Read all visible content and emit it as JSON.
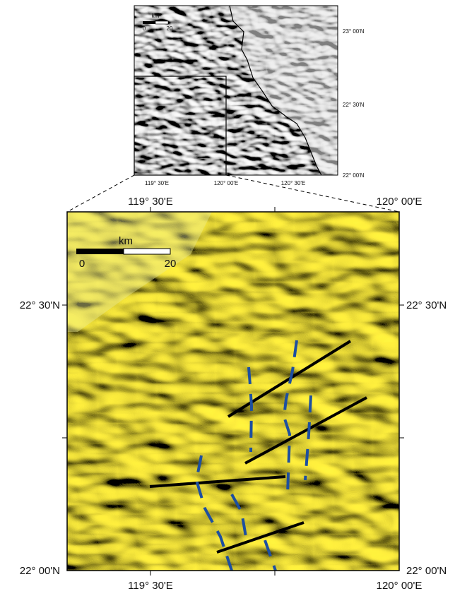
{
  "inset_map": {
    "scale_bar": {
      "unit": "km",
      "start": "0",
      "end": "20"
    },
    "lat_labels": [
      "23° 00'N",
      "22° 30'N",
      "22° 00'N"
    ],
    "lon_labels": [
      "119° 30'E",
      "120° 00'E",
      "120° 30'E"
    ]
  },
  "main_map": {
    "scale_bar": {
      "unit": "km",
      "start": "0",
      "end": "20"
    },
    "top_labels": [
      "119° 30'E",
      "120° 00'E"
    ],
    "left_labels": [
      "22° 30'N",
      "22° 00'N"
    ],
    "right_labels": [
      "22° 30'N",
      "22° 00'N"
    ],
    "bottom_labels": [
      "119° 30'E",
      "120° 00'E"
    ]
  }
}
